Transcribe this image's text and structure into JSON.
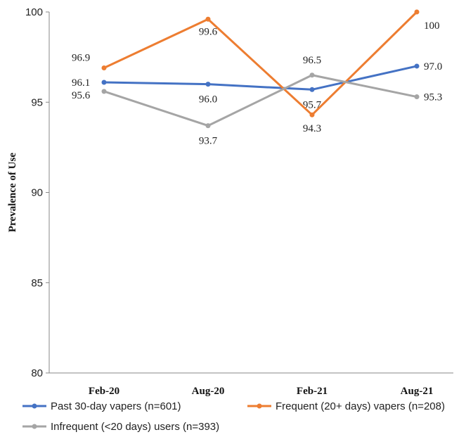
{
  "chart_data": {
    "type": "line",
    "title": "",
    "xlabel": "",
    "ylabel": "Prevalence of Use",
    "categories": [
      "Feb-20",
      "Aug-20",
      "Feb-21",
      "Aug-21"
    ],
    "ylim": [
      80,
      100
    ],
    "yticks": [
      80,
      85,
      90,
      95,
      100
    ],
    "grid": false,
    "legend_position": "bottom",
    "series": [
      {
        "name": "Past 30-day vapers (n=601)",
        "color": "#4472C4",
        "values": [
          96.1,
          96.0,
          95.7,
          97.0
        ],
        "labels": [
          "96.1",
          "96.0",
          "95.7",
          "97.0"
        ]
      },
      {
        "name": "Frequent (20+ days) vapers (n=208)",
        "color": "#ED7D31",
        "values": [
          96.9,
          99.6,
          94.3,
          100
        ],
        "labels": [
          "96.9",
          "99.6",
          "94.3",
          "100"
        ]
      },
      {
        "name": "Infrequent (<20 days) users (n=393)",
        "color": "#A5A5A5",
        "values": [
          95.6,
          93.7,
          96.5,
          95.3
        ],
        "labels": [
          "95.6",
          "93.7",
          "96.5",
          "95.3"
        ]
      }
    ]
  }
}
